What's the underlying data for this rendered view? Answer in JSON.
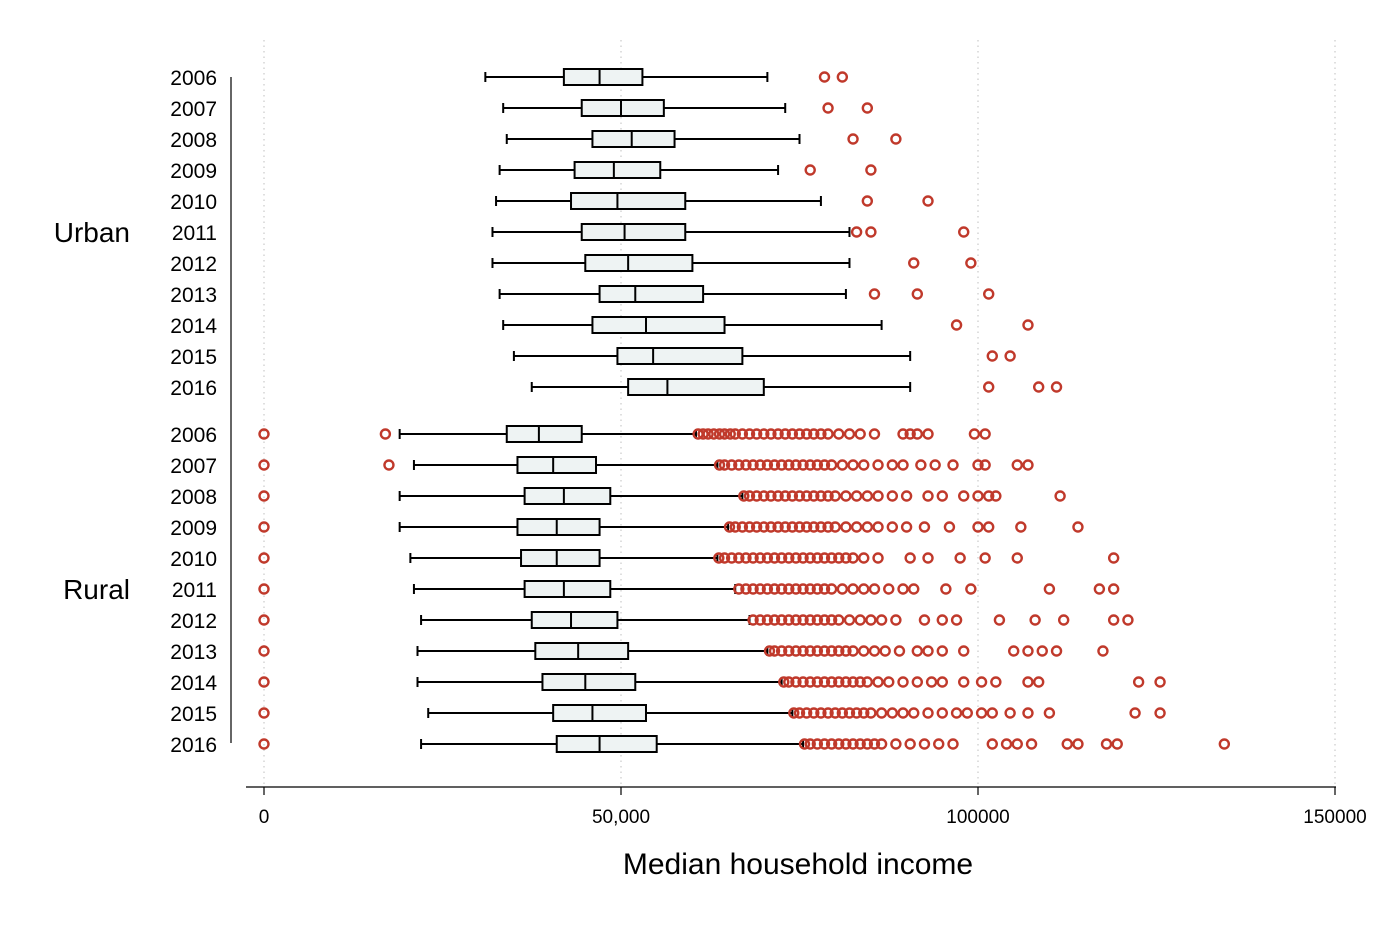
{
  "chart_data": {
    "type": "boxplot",
    "orientation": "horizontal",
    "xlabel": "Median household income",
    "xlim": [
      0,
      150000
    ],
    "xticks": [
      0,
      50000,
      100000,
      150000
    ],
    "xtick_labels": [
      "0",
      "50,000",
      "100000",
      "150000"
    ],
    "grid": "x dotted",
    "outlier_color": "#c0392b",
    "box_fill": "#eef3f3",
    "groups": [
      {
        "name": "Urban",
        "rows": [
          {
            "year": "2006",
            "whisker_low": 31000,
            "q1": 42000,
            "median": 47000,
            "q3": 53000,
            "whisker_high": 70500,
            "outliers": [
              78500,
              81000
            ]
          },
          {
            "year": "2007",
            "whisker_low": 33500,
            "q1": 44500,
            "median": 50000,
            "q3": 56000,
            "whisker_high": 73000,
            "outliers": [
              79000,
              84500
            ]
          },
          {
            "year": "2008",
            "whisker_low": 34000,
            "q1": 46000,
            "median": 51500,
            "q3": 57500,
            "whisker_high": 75000,
            "outliers": [
              82500,
              88500
            ]
          },
          {
            "year": "2009",
            "whisker_low": 33000,
            "q1": 43500,
            "median": 49000,
            "q3": 55500,
            "whisker_high": 72000,
            "outliers": [
              76500,
              85000
            ]
          },
          {
            "year": "2010",
            "whisker_low": 32500,
            "q1": 43000,
            "median": 49500,
            "q3": 59000,
            "whisker_high": 78000,
            "outliers": [
              84500,
              93000
            ]
          },
          {
            "year": "2011",
            "whisker_low": 32000,
            "q1": 44500,
            "median": 50500,
            "q3": 59000,
            "whisker_high": 82000,
            "outliers": [
              83000,
              85000,
              98000
            ]
          },
          {
            "year": "2012",
            "whisker_low": 32000,
            "q1": 45000,
            "median": 51000,
            "q3": 60000,
            "whisker_high": 82000,
            "outliers": [
              91000,
              99000
            ]
          },
          {
            "year": "2013",
            "whisker_low": 33000,
            "q1": 47000,
            "median": 52000,
            "q3": 61500,
            "whisker_high": 81500,
            "outliers": [
              85500,
              91500,
              101500
            ]
          },
          {
            "year": "2014",
            "whisker_low": 33500,
            "q1": 46000,
            "median": 53500,
            "q3": 64500,
            "whisker_high": 86500,
            "outliers": [
              97000,
              107000
            ]
          },
          {
            "year": "2015",
            "whisker_low": 35000,
            "q1": 49500,
            "median": 54500,
            "q3": 67000,
            "whisker_high": 90500,
            "outliers": [
              102000,
              104500
            ]
          },
          {
            "year": "2016",
            "whisker_low": 37500,
            "q1": 51000,
            "median": 56500,
            "q3": 70000,
            "whisker_high": 90500,
            "outliers": [
              101500,
              108500,
              111000
            ]
          }
        ]
      },
      {
        "name": "Rural",
        "rows": [
          {
            "year": "2006",
            "whisker_low": 19000,
            "q1": 34000,
            "median": 38500,
            "q3": 44500,
            "whisker_high": 60500,
            "outliers": [
              0,
              17000,
              60800,
              61500,
              62200,
              63000,
              63800,
              64500,
              65300,
              66000,
              67000,
              68000,
              69000,
              70000,
              71000,
              72000,
              73000,
              74000,
              75000,
              76000,
              77000,
              78000,
              79000,
              80500,
              82000,
              83500,
              85500,
              89500,
              90500,
              91500,
              93000,
              99500,
              101000
            ]
          },
          {
            "year": "2007",
            "whisker_low": 21000,
            "q1": 35500,
            "median": 40500,
            "q3": 46500,
            "whisker_high": 63500,
            "outliers": [
              0,
              17500,
              63800,
              64500,
              65500,
              66500,
              67500,
              68500,
              69500,
              70500,
              71500,
              72500,
              73500,
              74500,
              75500,
              76500,
              77500,
              78500,
              79500,
              81000,
              82500,
              84000,
              86000,
              88000,
              89500,
              92000,
              94000,
              96500,
              100000,
              101000,
              105500,
              107000
            ]
          },
          {
            "year": "2008",
            "whisker_low": 19000,
            "q1": 36500,
            "median": 42000,
            "q3": 48500,
            "whisker_high": 67000,
            "outliers": [
              0,
              67200,
              68000,
              69000,
              70000,
              71000,
              72000,
              73000,
              74000,
              75000,
              76000,
              77000,
              78000,
              79000,
              80000,
              81500,
              83000,
              84500,
              86000,
              88000,
              90000,
              93000,
              95000,
              98000,
              100000,
              101500,
              102500,
              111500
            ]
          },
          {
            "year": "2009",
            "whisker_low": 19000,
            "q1": 35500,
            "median": 41000,
            "q3": 47000,
            "whisker_high": 65000,
            "outliers": [
              0,
              65200,
              66000,
              67000,
              68000,
              69000,
              70000,
              71000,
              72000,
              73000,
              74000,
              75000,
              76000,
              77000,
              78000,
              79000,
              80000,
              81500,
              83000,
              84500,
              86000,
              88000,
              90000,
              92500,
              96000,
              100000,
              101500,
              106000,
              114000
            ]
          },
          {
            "year": "2010",
            "whisker_low": 20500,
            "q1": 36000,
            "median": 41000,
            "q3": 47000,
            "whisker_high": 63500,
            "outliers": [
              0,
              63700,
              64500,
              65500,
              66500,
              67500,
              68500,
              69500,
              70500,
              71500,
              72500,
              73500,
              74500,
              75500,
              76500,
              77500,
              78500,
              79500,
              80500,
              81500,
              82500,
              84000,
              86000,
              90500,
              93000,
              97500,
              101000,
              105500,
              119000
            ]
          },
          {
            "year": "2011",
            "whisker_low": 21000,
            "q1": 36500,
            "median": 42000,
            "q3": 48500,
            "whisker_high": 66000,
            "outliers": [
              0,
              66500,
              67500,
              68500,
              69500,
              70500,
              71500,
              72500,
              73500,
              74500,
              75500,
              76500,
              77500,
              78500,
              79500,
              81000,
              82500,
              84000,
              85500,
              87500,
              89500,
              91000,
              95500,
              99000,
              110000,
              117000,
              119000
            ]
          },
          {
            "year": "2012",
            "whisker_low": 22000,
            "q1": 37500,
            "median": 43000,
            "q3": 49500,
            "whisker_high": 68000,
            "outliers": [
              0,
              68500,
              69500,
              70500,
              71500,
              72500,
              73500,
              74500,
              75500,
              76500,
              77500,
              78500,
              79500,
              80500,
              82000,
              83500,
              85000,
              86500,
              88500,
              92500,
              95000,
              97000,
              103000,
              108000,
              112000,
              119000,
              121000
            ]
          },
          {
            "year": "2013",
            "whisker_low": 21500,
            "q1": 38000,
            "median": 44000,
            "q3": 51000,
            "whisker_high": 70500,
            "outliers": [
              0,
              70800,
              71500,
              72500,
              73500,
              74500,
              75500,
              76500,
              77500,
              78500,
              79500,
              80500,
              81500,
              82500,
              84000,
              85500,
              87000,
              89000,
              91500,
              93000,
              95000,
              98000,
              105000,
              107000,
              109000,
              111000,
              117500
            ]
          },
          {
            "year": "2014",
            "whisker_low": 21500,
            "q1": 39000,
            "median": 45000,
            "q3": 52000,
            "whisker_high": 72500,
            "outliers": [
              0,
              72800,
              73500,
              74500,
              75500,
              76500,
              77500,
              78500,
              79500,
              80500,
              81500,
              82500,
              83500,
              84500,
              86000,
              87500,
              89500,
              91500,
              93500,
              95000,
              98000,
              100500,
              102500,
              107000,
              108500,
              122500,
              125500
            ]
          },
          {
            "year": "2015",
            "whisker_low": 23000,
            "q1": 40500,
            "median": 46000,
            "q3": 53500,
            "whisker_high": 74000,
            "outliers": [
              0,
              74200,
              75000,
              76000,
              77000,
              78000,
              79000,
              80000,
              81000,
              82000,
              83000,
              84000,
              85000,
              86500,
              88000,
              89500,
              91000,
              93000,
              95000,
              97000,
              98500,
              100500,
              102000,
              104500,
              107000,
              110000,
              122000,
              125500
            ]
          },
          {
            "year": "2016",
            "whisker_low": 22000,
            "q1": 41000,
            "median": 47000,
            "q3": 55000,
            "whisker_high": 75500,
            "outliers": [
              0,
              75700,
              76500,
              77500,
              78500,
              79500,
              80500,
              81500,
              82500,
              83500,
              84500,
              85500,
              86500,
              88500,
              90500,
              92500,
              94500,
              96500,
              102000,
              104000,
              105500,
              107500,
              112500,
              114000,
              118000,
              119500,
              134500
            ]
          }
        ]
      }
    ]
  }
}
